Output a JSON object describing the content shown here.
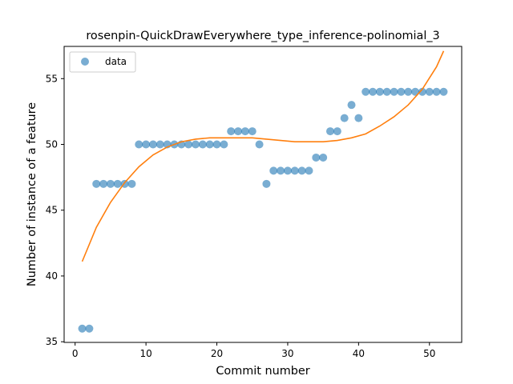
{
  "chart_data": {
    "type": "scatter",
    "title": "rosenpin-QuickDrawEverywhere_type_inference-polinomial_3",
    "xlabel": "Commit number",
    "ylabel": "Number of instance of a feature",
    "xlim": [
      -1.55,
      54.55
    ],
    "ylim": [
      34.95,
      57.45
    ],
    "xticks": [
      0,
      10,
      20,
      30,
      40,
      50
    ],
    "yticks": [
      35,
      40,
      45,
      50,
      55
    ],
    "grid": false,
    "legend_position": "upper-left",
    "series": [
      {
        "name": "data",
        "kind": "scatter",
        "color": "#1f77b4",
        "x": [
          1,
          2,
          3,
          4,
          5,
          6,
          7,
          8,
          9,
          10,
          11,
          12,
          13,
          14,
          15,
          16,
          17,
          18,
          19,
          20,
          21,
          22,
          23,
          24,
          25,
          26,
          27,
          28,
          29,
          30,
          31,
          32,
          33,
          34,
          35,
          36,
          37,
          38,
          39,
          40,
          41,
          42,
          43,
          44,
          45,
          46,
          47,
          48,
          49,
          50,
          51,
          52
        ],
        "y": [
          36,
          36,
          47,
          47,
          47,
          47,
          47,
          47,
          50,
          50,
          50,
          50,
          50,
          50,
          50,
          50,
          50,
          50,
          50,
          50,
          50,
          51,
          51,
          51,
          51,
          50,
          47,
          48,
          48,
          48,
          48,
          48,
          48,
          49,
          49,
          51,
          51,
          52,
          53,
          52,
          54,
          54,
          54,
          54,
          54,
          54,
          54,
          54,
          54,
          54,
          54,
          54
        ]
      },
      {
        "kind": "line",
        "color": "#ff7f0e",
        "x": [
          1,
          3,
          5,
          7,
          9,
          11,
          13,
          15,
          17,
          19,
          21,
          23,
          25,
          27,
          29,
          31,
          33,
          35,
          37,
          39,
          41,
          43,
          45,
          47,
          49,
          51,
          52
        ],
        "y": [
          41.1,
          43.7,
          45.6,
          47.1,
          48.3,
          49.2,
          49.8,
          50.2,
          50.4,
          50.5,
          50.5,
          50.5,
          50.5,
          50.4,
          50.3,
          50.2,
          50.2,
          50.2,
          50.3,
          50.5,
          50.8,
          51.4,
          52.1,
          53.0,
          54.2,
          55.9,
          57.1
        ]
      }
    ]
  }
}
